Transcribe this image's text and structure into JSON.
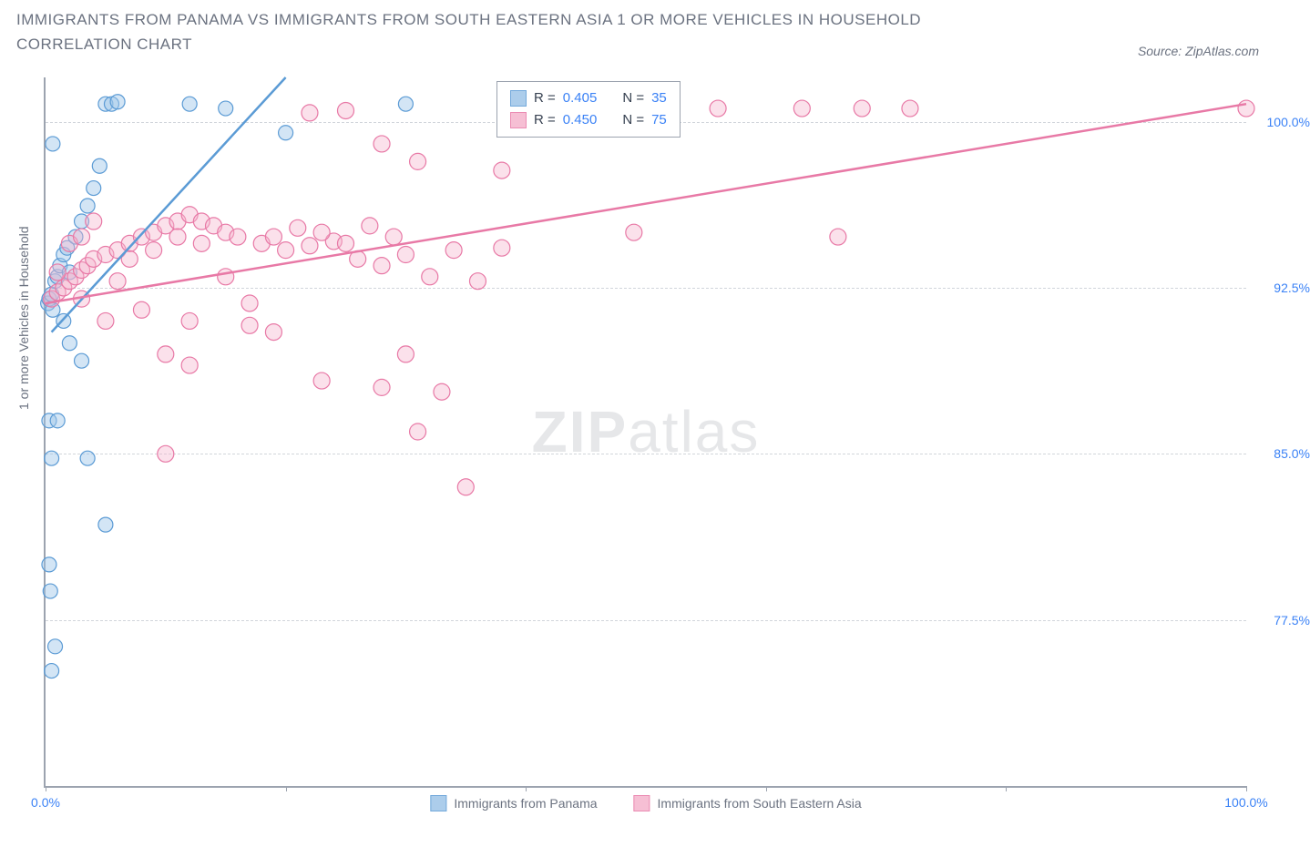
{
  "title": "IMMIGRANTS FROM PANAMA VS IMMIGRANTS FROM SOUTH EASTERN ASIA 1 OR MORE VEHICLES IN HOUSEHOLD CORRELATION CHART",
  "source": "Source: ZipAtlas.com",
  "ylabel": "1 or more Vehicles in Household",
  "watermark_zip": "ZIP",
  "watermark_atlas": "atlas",
  "chart": {
    "type": "scatter",
    "xlim": [
      0,
      100
    ],
    "ylim": [
      70,
      102
    ],
    "ytick_values": [
      77.5,
      85.0,
      92.5,
      100.0
    ],
    "ytick_labels": [
      "77.5%",
      "85.0%",
      "92.5%",
      "100.0%"
    ],
    "xtick_values": [
      0,
      20,
      40,
      60,
      80,
      100
    ],
    "xtick_labels_show": {
      "0": "0.0%",
      "100": "100.0%"
    },
    "grid_color": "#d1d5db",
    "axis_color": "#9ca3af",
    "background_color": "#ffffff",
    "series": [
      {
        "name": "Immigrants from Panama",
        "color_stroke": "#5b9bd5",
        "color_fill": "#9ec5e8",
        "fill_opacity": 0.45,
        "marker_radius": 8,
        "R": "0.405",
        "N": "35",
        "trend": {
          "x1": 0.5,
          "y1": 90.5,
          "x2": 20,
          "y2": 102,
          "width": 2.5
        },
        "points": [
          [
            0.2,
            91.8
          ],
          [
            0.3,
            92.0
          ],
          [
            0.5,
            92.2
          ],
          [
            0.6,
            91.5
          ],
          [
            0.8,
            92.8
          ],
          [
            1.0,
            93.0
          ],
          [
            1.2,
            93.5
          ],
          [
            1.5,
            94.0
          ],
          [
            1.8,
            94.3
          ],
          [
            2.0,
            93.2
          ],
          [
            2.5,
            94.8
          ],
          [
            3.0,
            95.5
          ],
          [
            3.5,
            96.2
          ],
          [
            4.0,
            97.0
          ],
          [
            4.5,
            98.0
          ],
          [
            5.0,
            100.8
          ],
          [
            5.5,
            100.8
          ],
          [
            6.0,
            100.9
          ],
          [
            12.0,
            100.8
          ],
          [
            15.0,
            100.6
          ],
          [
            20.0,
            99.5
          ],
          [
            30.0,
            100.8
          ],
          [
            0.3,
            86.5
          ],
          [
            1.0,
            86.5
          ],
          [
            0.5,
            84.8
          ],
          [
            3.5,
            84.8
          ],
          [
            5.0,
            81.8
          ],
          [
            0.3,
            80.0
          ],
          [
            0.4,
            78.8
          ],
          [
            0.8,
            76.3
          ],
          [
            0.5,
            75.2
          ],
          [
            0.6,
            99.0
          ],
          [
            2.0,
            90.0
          ],
          [
            1.5,
            91.0
          ],
          [
            3.0,
            89.2
          ]
        ]
      },
      {
        "name": "Immigrants from South Eastern Asia",
        "color_stroke": "#e879a6",
        "color_fill": "#f5b5cd",
        "fill_opacity": 0.4,
        "marker_radius": 9,
        "R": "0.450",
        "N": "75",
        "trend": {
          "x1": 0,
          "y1": 91.8,
          "x2": 100,
          "y2": 100.8,
          "width": 2.5
        },
        "points": [
          [
            0.5,
            92.0
          ],
          [
            1.0,
            92.3
          ],
          [
            1.5,
            92.5
          ],
          [
            2.0,
            92.8
          ],
          [
            2.5,
            93.0
          ],
          [
            3.0,
            93.3
          ],
          [
            3.5,
            93.5
          ],
          [
            4.0,
            93.8
          ],
          [
            5.0,
            94.0
          ],
          [
            6.0,
            94.2
          ],
          [
            7.0,
            94.5
          ],
          [
            8.0,
            94.8
          ],
          [
            9.0,
            95.0
          ],
          [
            10.0,
            95.3
          ],
          [
            11.0,
            95.5
          ],
          [
            12.0,
            95.8
          ],
          [
            13.0,
            95.5
          ],
          [
            14.0,
            95.3
          ],
          [
            15.0,
            95.0
          ],
          [
            16.0,
            94.8
          ],
          [
            18.0,
            94.5
          ],
          [
            20.0,
            94.2
          ],
          [
            22.0,
            94.4
          ],
          [
            24.0,
            94.6
          ],
          [
            26.0,
            93.8
          ],
          [
            28.0,
            93.5
          ],
          [
            30.0,
            94.0
          ],
          [
            32.0,
            93.0
          ],
          [
            34.0,
            94.2
          ],
          [
            36.0,
            92.8
          ],
          [
            49.0,
            95.0
          ],
          [
            56.0,
            100.6
          ],
          [
            63.0,
            100.6
          ],
          [
            66.0,
            94.8
          ],
          [
            68.0,
            100.6
          ],
          [
            72.0,
            100.6
          ],
          [
            100.0,
            100.6
          ],
          [
            5.0,
            91.0
          ],
          [
            8.0,
            91.5
          ],
          [
            12.0,
            91.0
          ],
          [
            17.0,
            91.8
          ],
          [
            15.0,
            93.0
          ],
          [
            2.0,
            94.5
          ],
          [
            4.0,
            95.5
          ],
          [
            28.0,
            99.0
          ],
          [
            31.0,
            98.2
          ],
          [
            38.0,
            97.8
          ],
          [
            22.0,
            100.4
          ],
          [
            25.0,
            100.5
          ],
          [
            1.0,
            93.2
          ],
          [
            3.0,
            92.0
          ],
          [
            6.0,
            92.8
          ],
          [
            10.0,
            85.0
          ],
          [
            23.0,
            88.3
          ],
          [
            28.0,
            88.0
          ],
          [
            30.0,
            89.5
          ],
          [
            31.0,
            86.0
          ],
          [
            33.0,
            87.8
          ],
          [
            35.0,
            83.5
          ],
          [
            10.0,
            89.5
          ],
          [
            12.0,
            89.0
          ],
          [
            17.0,
            90.8
          ],
          [
            19.0,
            90.5
          ],
          [
            7.0,
            93.8
          ],
          [
            9.0,
            94.2
          ],
          [
            11.0,
            94.8
          ],
          [
            13.0,
            94.5
          ],
          [
            19.0,
            94.8
          ],
          [
            21.0,
            95.2
          ],
          [
            23.0,
            95.0
          ],
          [
            25.0,
            94.5
          ],
          [
            27.0,
            95.3
          ],
          [
            29.0,
            94.8
          ],
          [
            38.0,
            94.3
          ],
          [
            3.0,
            94.8
          ]
        ]
      }
    ]
  },
  "legend": {
    "R_label": "R =",
    "N_label": "N =",
    "bottom_items": [
      "Immigrants from Panama",
      "Immigrants from South Eastern Asia"
    ]
  }
}
